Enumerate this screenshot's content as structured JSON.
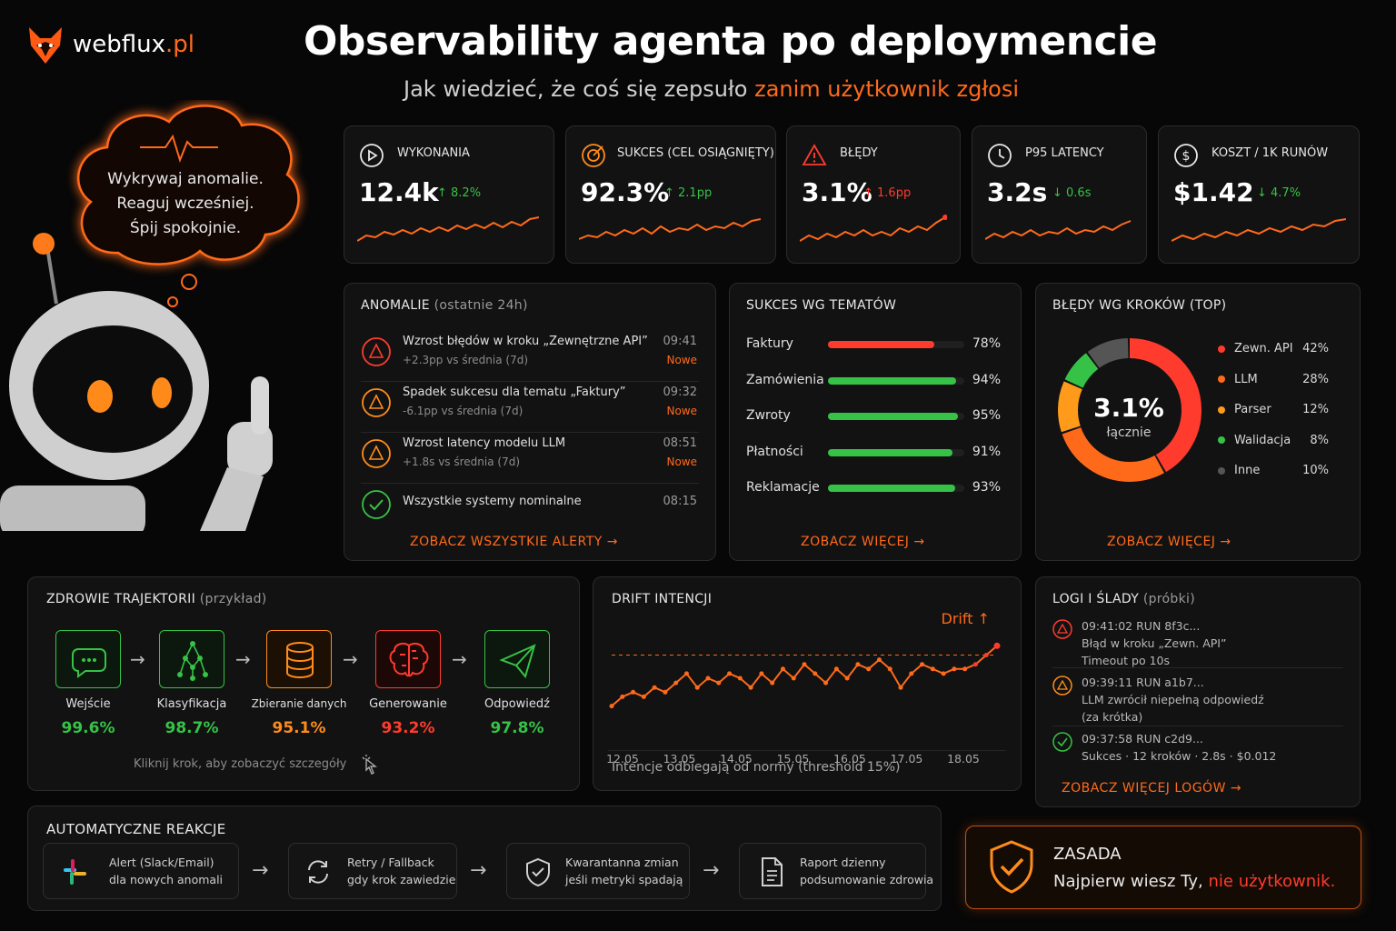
{
  "brand": {
    "name": "webflux",
    "tld": ".pl"
  },
  "header": {
    "title": "Observability agenta po deploymencie",
    "subtitle_plain": "Jak wiedzieć, że coś się zepsuło ",
    "subtitle_accent": "zanim użytkownik zgłosi"
  },
  "bubble": {
    "lines": [
      "Wykrywaj anomalie.",
      "Reaguj wcześniej.",
      "Śpij spokojnie."
    ]
  },
  "kpis": [
    {
      "label": "WYKONANIA",
      "value": "12.4k",
      "delta": "↑ 8.2%",
      "icon": "play-icon"
    },
    {
      "label": "SUKCES (CEL OSIĄGNIĘTY)",
      "value": "92.3%",
      "delta": "↑ 2.1pp",
      "icon": "target-icon"
    },
    {
      "label": "BŁĘDY",
      "value": "3.1%",
      "delta": "↑ 1.6pp",
      "icon": "warning-icon"
    },
    {
      "label": "P95 LATENCY",
      "value": "3.2s",
      "delta": "↓ 0.6s",
      "icon": "clock-icon"
    },
    {
      "label": "KOSZT / 1K RUNÓW",
      "value": "$1.42",
      "delta": "↓ 4.7%",
      "icon": "dollar-icon"
    }
  ],
  "anomalies": {
    "title": "ANOMALIE",
    "title_note": "(ostatnie 24h)",
    "items": [
      {
        "title": "Wzrost błędów w kroku „Zewnętrzne API”",
        "sub": "+2.3pp vs średnia (7d)",
        "time": "09:41",
        "tag": "Nowe",
        "color": "#ff3b2e"
      },
      {
        "title": "Spadek sukcesu dla tematu „Faktury”",
        "sub": "-6.1pp vs średnia (7d)",
        "time": "09:32",
        "tag": "Nowe",
        "color": "#ff8c1a"
      },
      {
        "title": "Wzrost latency modelu LLM",
        "sub": "+1.8s vs średnia (7d)",
        "time": "08:51",
        "tag": "Nowe",
        "color": "#ff8c1a"
      },
      {
        "title": "Wszystkie systemy nominalne",
        "sub": "",
        "time": "08:15",
        "tag": "",
        "color": "#36c246"
      }
    ],
    "link": "ZOBACZ WSZYSTKIE ALERTY →"
  },
  "topics": {
    "title": "SUKCES WG TEMATÓW",
    "items": [
      {
        "name": "Faktury",
        "pct": "78%",
        "value": 78,
        "color": "#ff3b2e"
      },
      {
        "name": "Zamówienia",
        "pct": "94%",
        "value": 94,
        "color": "#36c246"
      },
      {
        "name": "Zwroty",
        "pct": "95%",
        "value": 95,
        "color": "#36c246"
      },
      {
        "name": "Płatności",
        "pct": "91%",
        "value": 91,
        "color": "#36c246"
      },
      {
        "name": "Reklamacje",
        "pct": "93%",
        "value": 93,
        "color": "#36c246"
      }
    ],
    "link": "ZOBACZ WIĘCEJ →"
  },
  "errors_by_step": {
    "title": "BŁĘDY WG KROKÓW (TOP)",
    "center_value": "3.1%",
    "center_label": "łącznie",
    "items": [
      {
        "name": "Zewn. API",
        "pct": "42%",
        "value": 42,
        "color": "#ff3b2e"
      },
      {
        "name": "LLM",
        "pct": "28%",
        "value": 28,
        "color": "#ff6a1a"
      },
      {
        "name": "Parser",
        "pct": "12%",
        "value": 12,
        "color": "#ff9a1a"
      },
      {
        "name": "Walidacja",
        "pct": "8%",
        "value": 8,
        "color": "#36c246"
      },
      {
        "name": "Inne",
        "pct": "10%",
        "value": 10,
        "color": "#555555"
      }
    ],
    "link": "ZOBACZ WIĘCEJ →"
  },
  "trajectory": {
    "title": "ZDROWIE TRAJEKTORII",
    "title_note": "(przykład)",
    "steps": [
      {
        "label": "Wejście",
        "value": "99.6%",
        "color": "#36c246",
        "icon": "chat-icon"
      },
      {
        "label": "Klasyfikacja",
        "value": "98.7%",
        "color": "#36c246",
        "icon": "network-icon"
      },
      {
        "label": "Zbieranie danych",
        "value": "95.1%",
        "color": "#ff8c1a",
        "icon": "database-icon"
      },
      {
        "label": "Generowanie",
        "value": "93.2%",
        "color": "#ff3b2e",
        "icon": "brain-icon"
      },
      {
        "label": "Odpowiedź",
        "value": "97.8%",
        "color": "#36c246",
        "icon": "send-icon"
      }
    ],
    "hint": "Kliknij krok, aby zobaczyć szczegóły"
  },
  "drift": {
    "title": "DRIFT INTENCJI",
    "badge": "Drift ↑",
    "caption": "Intencje odbiegają od normy (threshold 15%)"
  },
  "chart_data": {
    "type": "line",
    "title": "DRIFT INTENCJI",
    "x_ticks": [
      "12.05",
      "13.05",
      "14.05",
      "15.05",
      "16.05",
      "17.05",
      "18.05"
    ],
    "values": [
      4,
      6,
      7,
      6,
      8,
      7,
      9,
      11,
      8,
      10,
      9,
      11,
      10,
      8,
      11,
      9,
      12,
      10,
      13,
      11,
      9,
      12,
      10,
      13,
      12,
      14,
      12,
      8,
      11,
      13,
      12,
      11,
      12,
      12,
      13,
      15,
      17
    ],
    "threshold": 15,
    "ylim": [
      0,
      20
    ],
    "grid": false
  },
  "logs": {
    "title": "LOGI I ŚLADY",
    "title_note": "(próbki)",
    "items": [
      {
        "lines": [
          "09:41:02   RUN 8f3c...",
          "Błąd w kroku „Zewn. API”",
          "Timeout po 10s"
        ],
        "color": "#ff3b2e",
        "status": "error"
      },
      {
        "lines": [
          "09:39:11   RUN a1b7...",
          "LLM zwrócił niepełną odpowiedź",
          "(za krótka)"
        ],
        "color": "#ff8c1a",
        "status": "warning"
      },
      {
        "lines": [
          "09:37:58   RUN c2d9...",
          "Sukces · 12 kroków · 2.8s · $0.012"
        ],
        "color": "#36c246",
        "status": "ok"
      }
    ],
    "link": "ZOBACZ WIĘCEJ LOGÓW →"
  },
  "reactions": {
    "title": "AUTOMATYCZNE REAKCJE",
    "items": [
      {
        "line1": "Alert (Slack/Email)",
        "line2": "dla nowych anomali",
        "icon": "slack-icon"
      },
      {
        "line1": "Retry / Fallback",
        "line2": "gdy krok zawiedzie",
        "icon": "refresh-icon"
      },
      {
        "line1": "Kwarantanna zmian",
        "line2": "jeśli metryki spadają",
        "icon": "shield-icon"
      },
      {
        "line1": "Raport dzienny",
        "line2": "podsumowanie zdrowia",
        "icon": "document-icon"
      }
    ]
  },
  "rule": {
    "title": "ZASADA",
    "text_plain": "Najpierw wiesz Ty, ",
    "text_accent": "nie użytkownik."
  },
  "colors": {
    "accent": "#ff6a1a",
    "red": "#ff3b2e",
    "green": "#36c246",
    "orange": "#ff8c1a"
  }
}
